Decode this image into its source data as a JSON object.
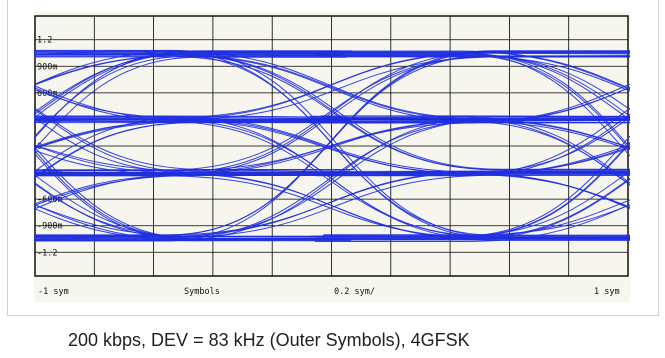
{
  "chart_data": {
    "type": "line",
    "title": "",
    "xlabel": "Symbols",
    "ylabel": "",
    "x_range": [
      -1,
      1
    ],
    "ylim": [
      -1.4,
      1.4
    ],
    "grid": true,
    "trace_color": "#1f2fe0",
    "y_tick_labels": [
      "1.2",
      "900m",
      "600m",
      "300m",
      "0",
      "-300m",
      "-600m",
      "-900m",
      "-1.2"
    ],
    "y_tick_values": [
      1.2,
      0.9,
      0.6,
      0.3,
      0,
      -0.3,
      -0.6,
      -0.9,
      -1.2
    ],
    "x_tick_labels": [
      "-1 sym",
      "Symbols",
      "0.2 sym/",
      "1 sym"
    ],
    "x_tick_values": [
      -1,
      -0.6,
      0,
      1
    ],
    "symbol_levels": [
      1.04,
      0.3,
      -0.3,
      -1.04
    ],
    "transition_centers": [
      -1,
      0,
      1
    ]
  },
  "caption": "200 kbps, DEV = 83 kHz (Outer Symbols), 4GFSK"
}
